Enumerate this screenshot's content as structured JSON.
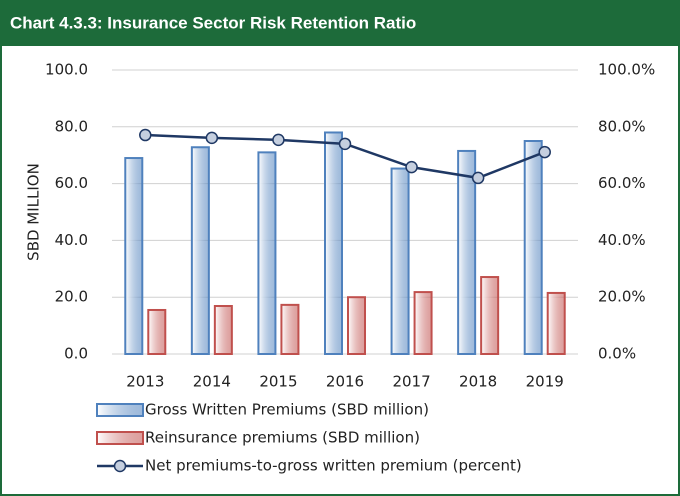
{
  "chart_data": {
    "type": "bar-line",
    "title": "Chart 4.3.3: Insurance Sector Risk Retention Ratio",
    "ylabel": "SBD MILLION",
    "categories": [
      "2013",
      "2014",
      "2015",
      "2016",
      "2017",
      "2018",
      "2019"
    ],
    "series": [
      {
        "name": "Gross Written Premiums (SBD million)",
        "type": "bar",
        "color": "#4f81bd",
        "values": [
          69,
          72.8,
          71,
          78,
          65.3,
          71.5,
          75
        ]
      },
      {
        "name": "Reinsurance premiums (SBD million)",
        "type": "bar",
        "color": "#c0504d",
        "values": [
          15.5,
          16.9,
          17.3,
          20,
          21.8,
          27.1,
          21.5
        ]
      },
      {
        "name": "Net premiums-to-gross written premium (percent)",
        "type": "line",
        "axis": "y2",
        "color": "#1f3864",
        "values": [
          77.1,
          76.1,
          75.4,
          74,
          65.8,
          62,
          71.1
        ]
      }
    ],
    "ylim": [
      0,
      100
    ],
    "yticks": [
      {
        "value": 0,
        "label": "0.0"
      },
      {
        "value": 20,
        "label": "20.0"
      },
      {
        "value": 40,
        "label": "40.0"
      },
      {
        "value": 60,
        "label": "60.0"
      },
      {
        "value": 80,
        "label": "80.0"
      },
      {
        "value": 100,
        "label": "100.0"
      }
    ],
    "y2lim": [
      0,
      100
    ],
    "y2ticks": [
      {
        "value": 0,
        "label": "0.0%"
      },
      {
        "value": 20,
        "label": "20.0%"
      },
      {
        "value": 40,
        "label": "40.0%"
      },
      {
        "value": 60,
        "label": "60.0%"
      },
      {
        "value": 80,
        "label": "80.0%"
      },
      {
        "value": 100,
        "label": "100.0%"
      }
    ],
    "grid": true
  }
}
